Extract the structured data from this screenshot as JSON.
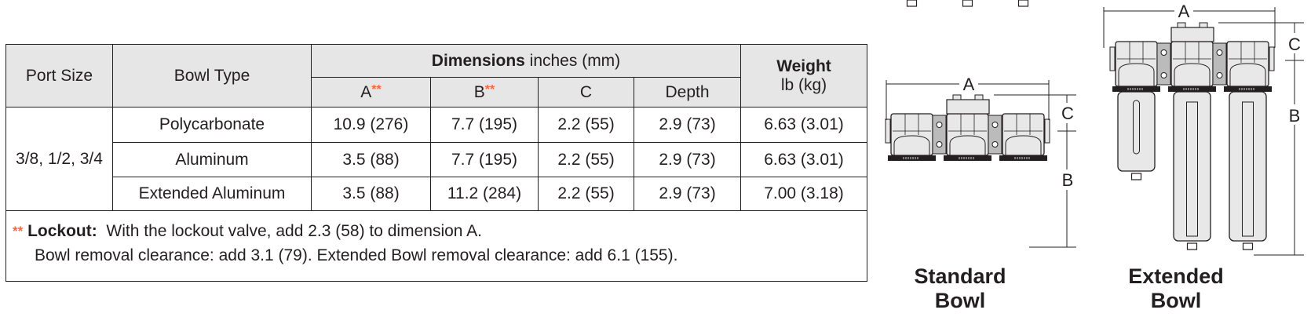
{
  "table": {
    "headers": {
      "port_size": "Port Size",
      "bowl_type": "Bowl Type",
      "dimensions_bold": "Dimensions",
      "dimensions_unit": " inches (mm)",
      "weight": "Weight",
      "weight_unit": "lb (kg)",
      "sub": {
        "a": "A",
        "b": "B",
        "c": "C",
        "depth": "Depth"
      },
      "asterisk": "**"
    },
    "port_size": "3/8, 1/2, 3/4",
    "rows": [
      {
        "bowl": "Polycarbonate",
        "a": "10.9 (276)",
        "b": "7.7 (195)",
        "c": "2.2 (55)",
        "depth": "2.9 (73)",
        "weight": "6.63 (3.01)"
      },
      {
        "bowl": "Aluminum",
        "a": "3.5 (88)",
        "b": "7.7 (195)",
        "c": "2.2 (55)",
        "depth": "2.9 (73)",
        "weight": "6.63 (3.01)"
      },
      {
        "bowl": "Extended Aluminum",
        "a": "3.5 (88)",
        "b": "11.2 (284)",
        "c": "2.2 (55)",
        "depth": "2.9 (73)",
        "weight": "7.00 (3.18)"
      }
    ],
    "notes": {
      "asterisk": "**",
      "lockout_label": "Lockout:",
      "lockout_text": "  With the lockout valve, add 2.3 (58) to dimension A.",
      "line2": "Bowl removal clearance: add 3.1 (79).  Extended Bowl removal clearance: add 6.1 (155)."
    }
  },
  "figures": {
    "standard": {
      "label_line1": "Standard",
      "label_line2": "Bowl",
      "dim_a": "A",
      "dim_b": "B",
      "dim_c": "C"
    },
    "extended": {
      "label_line1": "Extended",
      "label_line2": "Bowl",
      "dim_a": "A",
      "dim_b": "B",
      "dim_c": "C"
    }
  },
  "colors": {
    "accent": "#f26a3d",
    "header_bg": "#e6e6e6",
    "part_fill": "#e8e8e8"
  }
}
